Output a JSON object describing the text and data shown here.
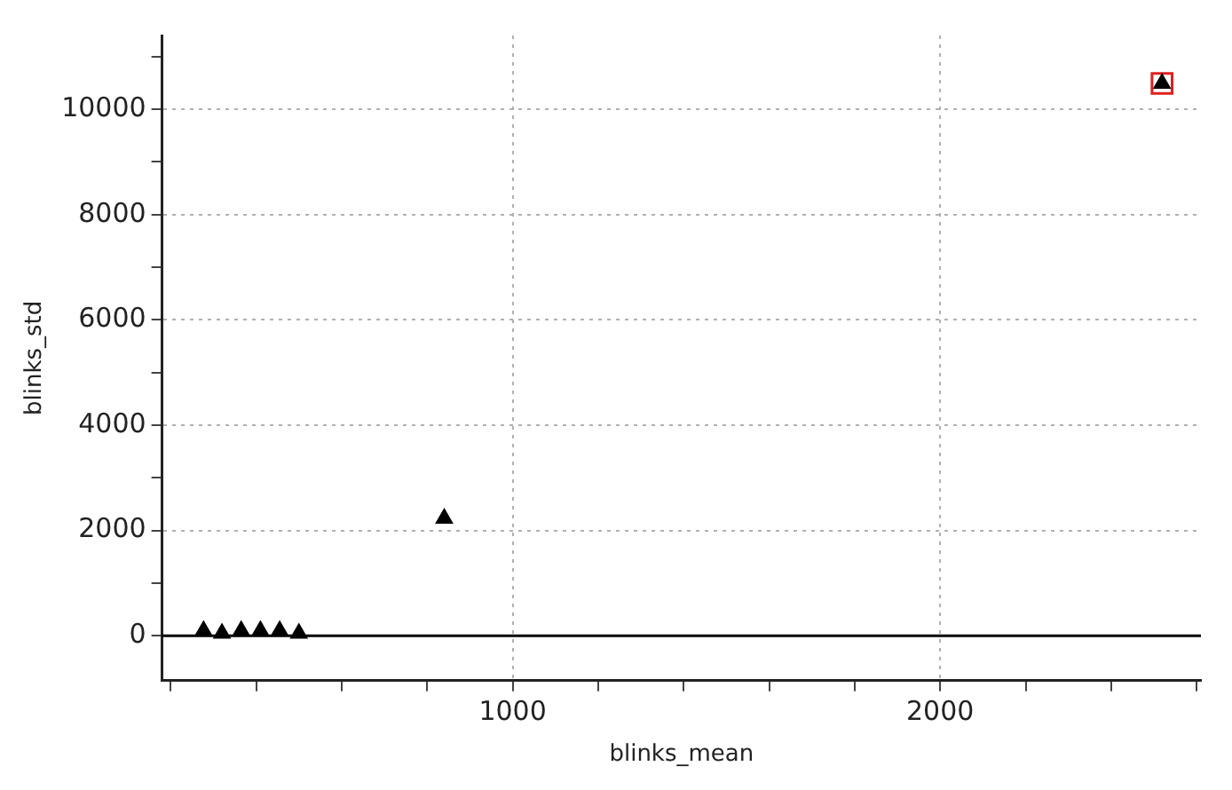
{
  "chart_data": {
    "type": "scatter",
    "xlabel": "blinks_mean",
    "ylabel": "blinks_std",
    "xlim": [
      180,
      2610
    ],
    "ylim": [
      -850,
      11400
    ],
    "xticks": [
      {
        "value": 200,
        "label": null
      },
      {
        "value": 400,
        "label": null
      },
      {
        "value": 600,
        "label": null
      },
      {
        "value": 800,
        "label": null
      },
      1000,
      {
        "value": 1200,
        "label": null
      },
      {
        "value": 1400,
        "label": null
      },
      {
        "value": 1600,
        "label": null
      },
      {
        "value": 1800,
        "label": null
      },
      2000,
      {
        "value": 2200,
        "label": null
      },
      {
        "value": 2400,
        "label": null
      },
      {
        "value": 2600,
        "label": null
      }
    ],
    "yticks": [
      0,
      {
        "value": 1000,
        "label": null
      },
      2000,
      {
        "value": 3000,
        "label": null
      },
      4000,
      {
        "value": 5000,
        "label": null
      },
      6000,
      {
        "value": 7000,
        "label": null
      },
      8000,
      {
        "value": 9000,
        "label": null
      },
      10000,
      {
        "value": 11000,
        "label": null
      }
    ],
    "grid": true,
    "legend": false,
    "ref_lines": [
      {
        "axis": "y",
        "value": 0,
        "color": "#000000",
        "line_style": "solid"
      }
    ],
    "series": [
      {
        "color": "#000000",
        "marker": "triangle",
        "x": [
          277,
          320,
          365,
          410,
          455,
          500,
          840,
          2519
        ],
        "values": [
          100,
          50,
          100,
          100,
          100,
          50,
          2230,
          10490
        ]
      },
      {
        "color": "#e02020",
        "marker": "square",
        "x": [
          2519
        ],
        "values": [
          10490
        ]
      }
    ]
  }
}
